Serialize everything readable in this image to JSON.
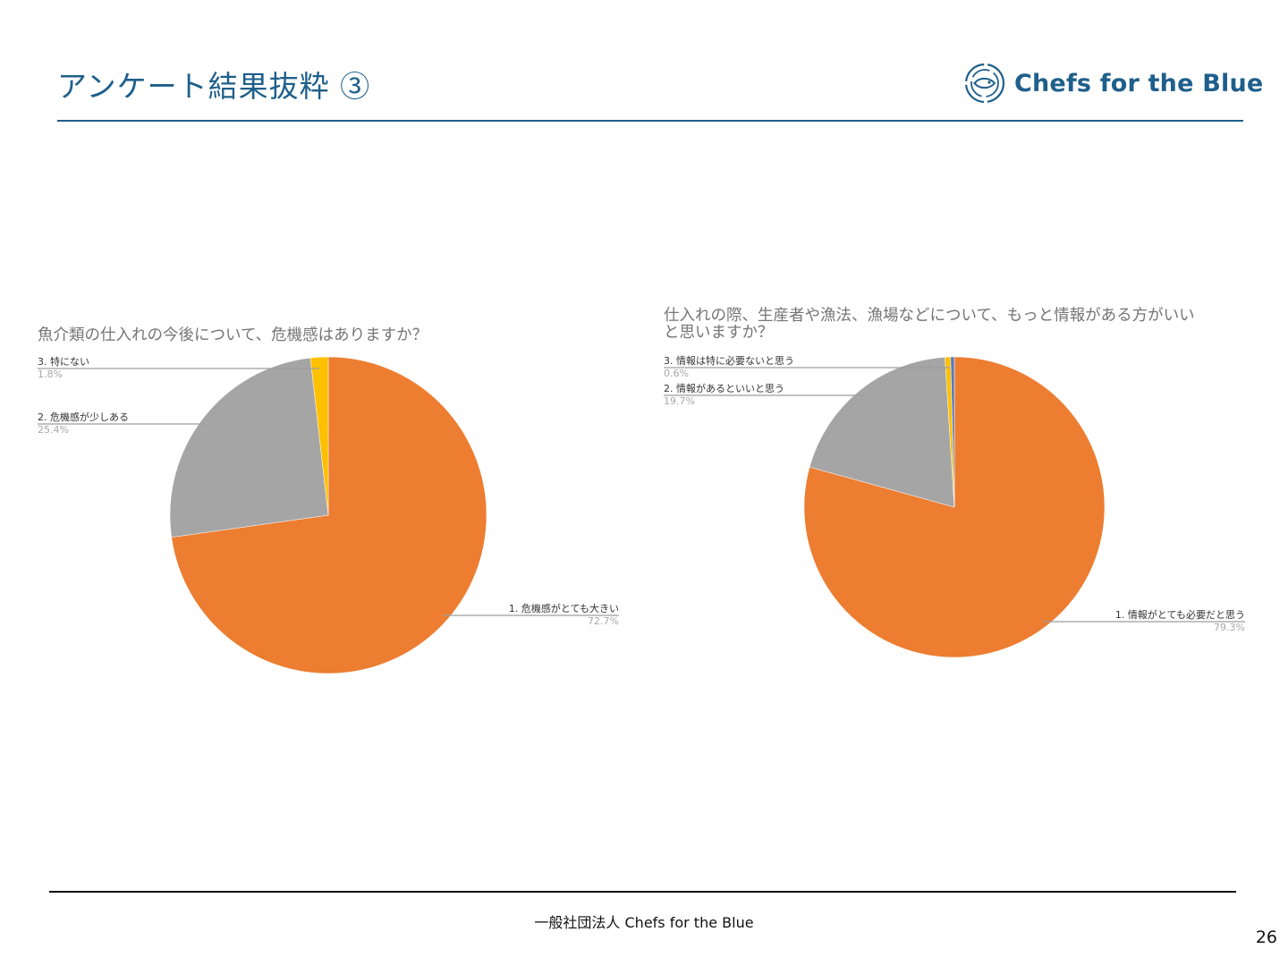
{
  "header": {
    "title": "アンケート結果抜粋 ③",
    "logo_text": "Chefs for the Blue",
    "logo_icon": "fish-circle-logo-icon",
    "accent_color": "#1f5f8b"
  },
  "chart_data": [
    {
      "type": "pie",
      "title": "魚介類の仕入れの今後について、危機感はありますか？",
      "slices": [
        {
          "label": "1. 危機感がとても大きい",
          "value": 72.7,
          "percent_text": "72.7%",
          "color": "#ed7d31"
        },
        {
          "label": "2. 危機感が少しある",
          "value": 25.4,
          "percent_text": "25.4%",
          "color": "#a5a5a5"
        },
        {
          "label": "3. 特にない",
          "value": 1.8,
          "percent_text": "1.8%",
          "color": "#ffc000"
        }
      ],
      "legend": "callout-labels"
    },
    {
      "type": "pie",
      "title": "仕入れの際、生産者や漁法、漁場などについて、もっと情報がある方がいい\nと思いますか？",
      "slices": [
        {
          "label": "1. 情報がとても必要だと思う",
          "value": 79.3,
          "percent_text": "79.3%",
          "color": "#ed7d31"
        },
        {
          "label": "2. 情報があるといいと思う",
          "value": 19.7,
          "percent_text": "19.7%",
          "color": "#a5a5a5"
        },
        {
          "label": "3. 情報は特に必要ないと思う",
          "value": 0.6,
          "percent_text": "0.6%",
          "color": "#ffc000"
        },
        {
          "value": 0.4,
          "color": "#5b7bbd"
        }
      ],
      "legend": "callout-labels"
    }
  ],
  "footer": {
    "organization": "一般社団法人 Chefs for the Blue",
    "page_number": "26"
  }
}
